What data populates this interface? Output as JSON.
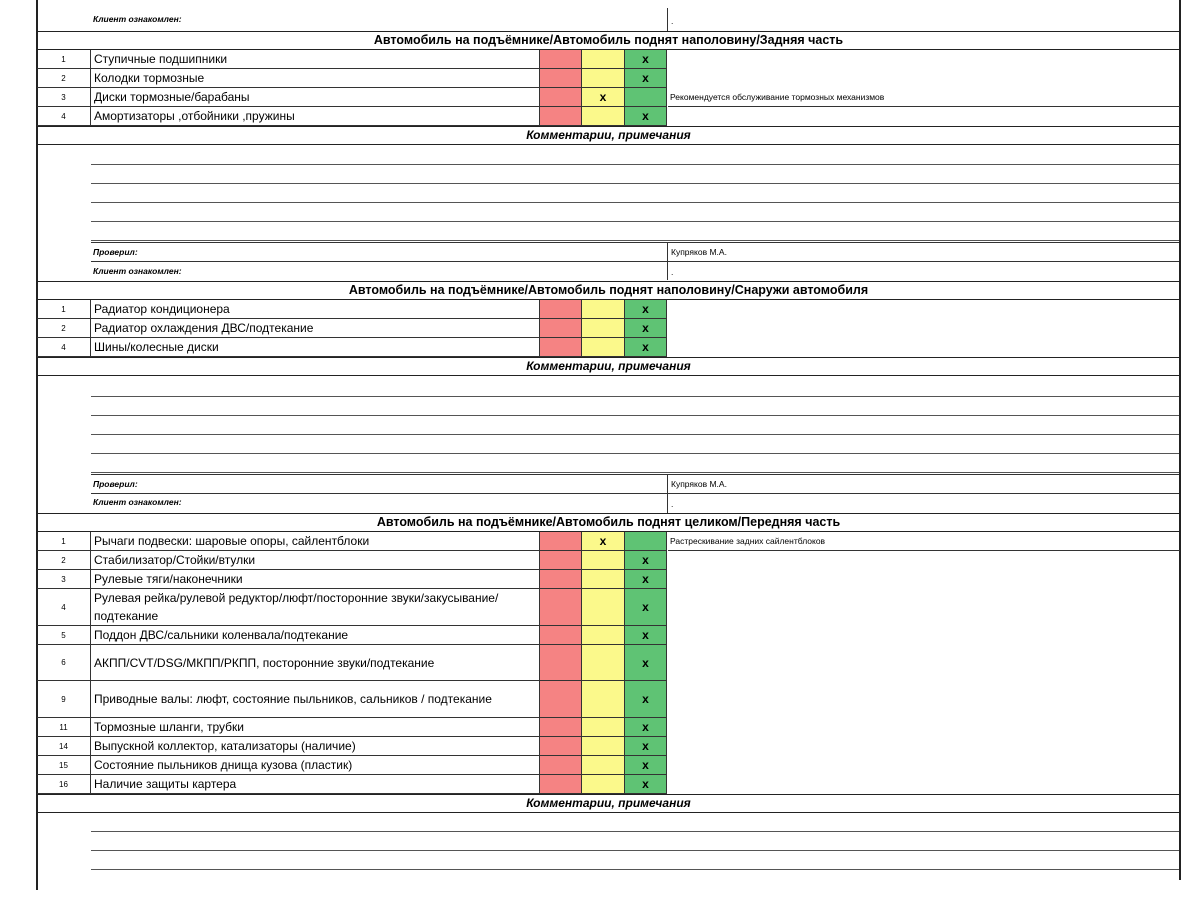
{
  "top": {
    "client_label": "Клиент ознакомлен:",
    "client_value": "."
  },
  "sections": [
    {
      "title": "Автомобиль на подъёмнике/Автомобиль поднят наполовину/Задняя часть",
      "rows": [
        {
          "num": "1",
          "name": "Ступичные подшипники",
          "yellow": "",
          "green": "x",
          "note": ""
        },
        {
          "num": "2",
          "name": "Колодки тормозные",
          "yellow": "",
          "green": "x",
          "note": ""
        },
        {
          "num": "3",
          "name": "Диски тормозные/барабаны",
          "yellow": "x",
          "green": "",
          "note": "Рекомендуется обслуживание тормозных механизмов"
        },
        {
          "num": "4",
          "name": "Амортизаторы ,отбойники ,пружины",
          "yellow": "",
          "green": "x",
          "note": ""
        }
      ],
      "comments_label": "Комментарии, примечания",
      "checked_label": "Проверил:",
      "checked_value": "Купряков М.А.",
      "client_label": "Клиент ознакомлен:",
      "client_value": "."
    },
    {
      "title": "Автомобиль на подъёмнике/Автомобиль поднят наполовину/Снаружи автомобиля",
      "rows": [
        {
          "num": "1",
          "name": "Радиатор кондиционера",
          "yellow": "",
          "green": "x",
          "note": ""
        },
        {
          "num": "2",
          "name": "Радиатор охлаждения ДВС/подтекание",
          "yellow": "",
          "green": "x",
          "note": ""
        },
        {
          "num": "4",
          "name": "Шины/колесные диски",
          "yellow": "",
          "green": "x",
          "note": ""
        }
      ],
      "comments_label": "Комментарии, примечания",
      "checked_label": "Проверил:",
      "checked_value": "Купряков М.А.",
      "client_label": "Клиент ознакомлен:",
      "client_value": "."
    },
    {
      "title": "Автомобиль на подъёмнике/Автомобиль поднят целиком/Передняя часть",
      "rows": [
        {
          "num": "1",
          "name": "Рычаги подвески: шаровые опоры, сайлентблоки",
          "yellow": "x",
          "green": "",
          "note": "Растрескивание задних сайлентблоков"
        },
        {
          "num": "2",
          "name": "Стабилизатор/Стойки/втулки",
          "yellow": "",
          "green": "x",
          "note": ""
        },
        {
          "num": "3",
          "name": "Рулевые тяги/наконечники",
          "yellow": "",
          "green": "x",
          "note": ""
        },
        {
          "num": "4",
          "name": "Рулевая рейка/рулевой редуктор/люфт/посторонние звуки/закусывание/подтекание",
          "yellow": "",
          "green": "x",
          "note": ""
        },
        {
          "num": "5",
          "name": "Поддон ДВС/сальники коленвала/подтекание",
          "yellow": "",
          "green": "x",
          "note": ""
        },
        {
          "num": "6",
          "name": "АКПП/CVT/DSG/МКПП/РКПП, посторонние звуки/подтекание",
          "yellow": "",
          "green": "x",
          "note": ""
        },
        {
          "num": "9",
          "name": "Приводные валы: люфт, состояние пыльников, сальников / подтекание",
          "yellow": "",
          "green": "x",
          "note": ""
        },
        {
          "num": "11",
          "name": "Тормозные шланги, трубки",
          "yellow": "",
          "green": "x",
          "note": ""
        },
        {
          "num": "14",
          "name": "Выпускной коллектор, катализаторы (наличие)",
          "yellow": "",
          "green": "x",
          "note": ""
        },
        {
          "num": "15",
          "name": "Состояние пыльников днища кузова (пластик)",
          "yellow": "",
          "green": "x",
          "note": ""
        },
        {
          "num": "16",
          "name": "Наличие защиты картера",
          "yellow": "",
          "green": "x",
          "note": ""
        }
      ],
      "comments_label": "Комментарии, примечания"
    }
  ]
}
